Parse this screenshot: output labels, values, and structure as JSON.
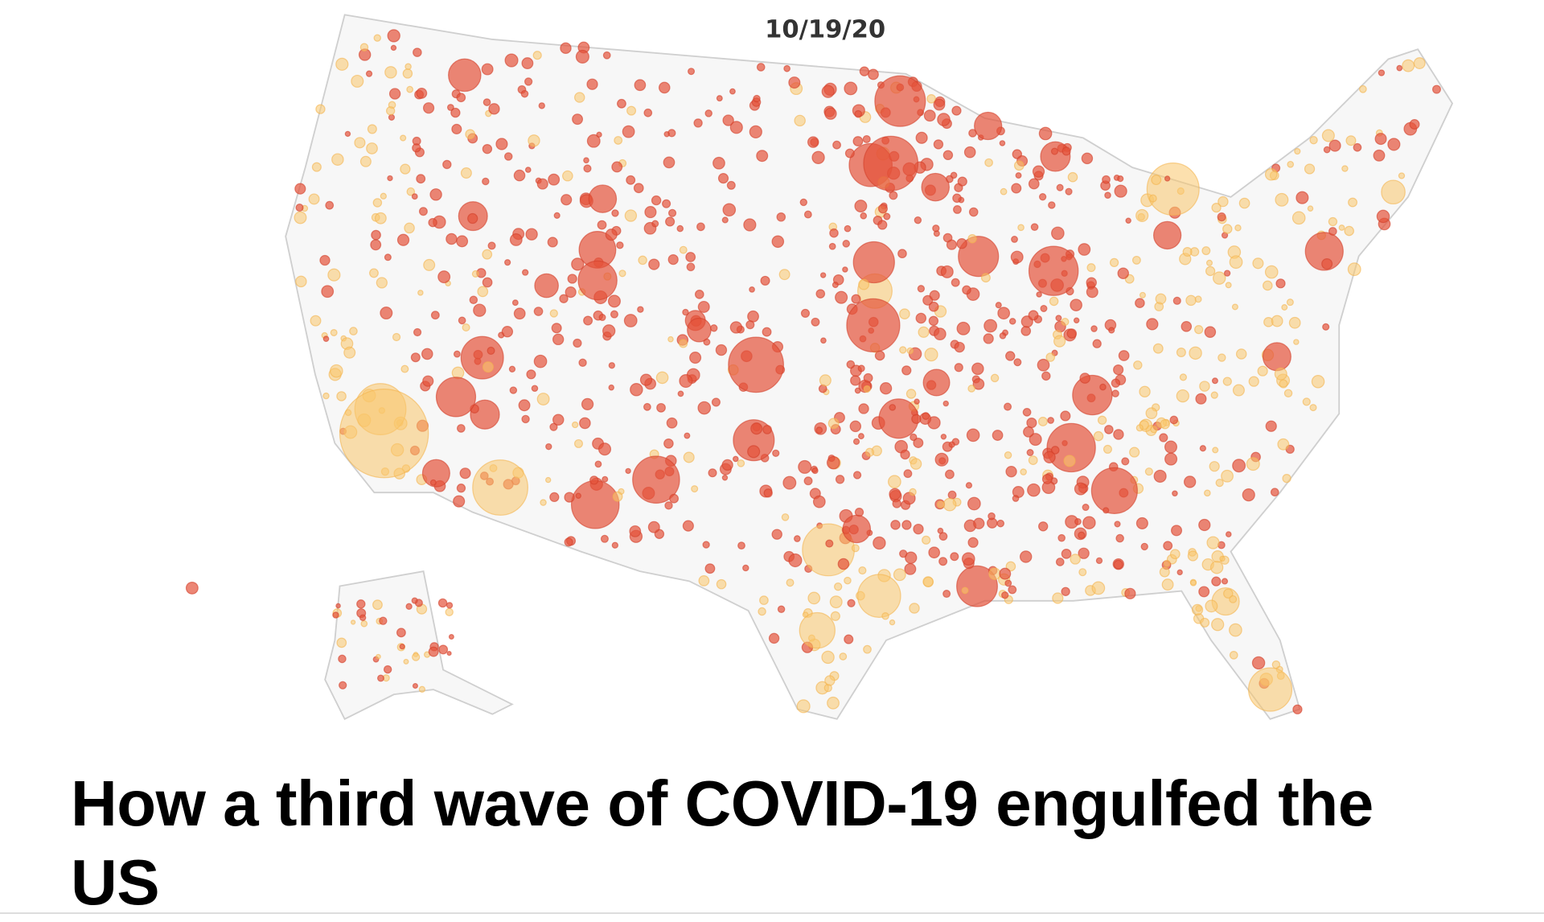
{
  "map": {
    "date_label": "10/19/20"
  },
  "article": {
    "headline": "How a third wave of COVID-19 engulfed the US"
  }
}
